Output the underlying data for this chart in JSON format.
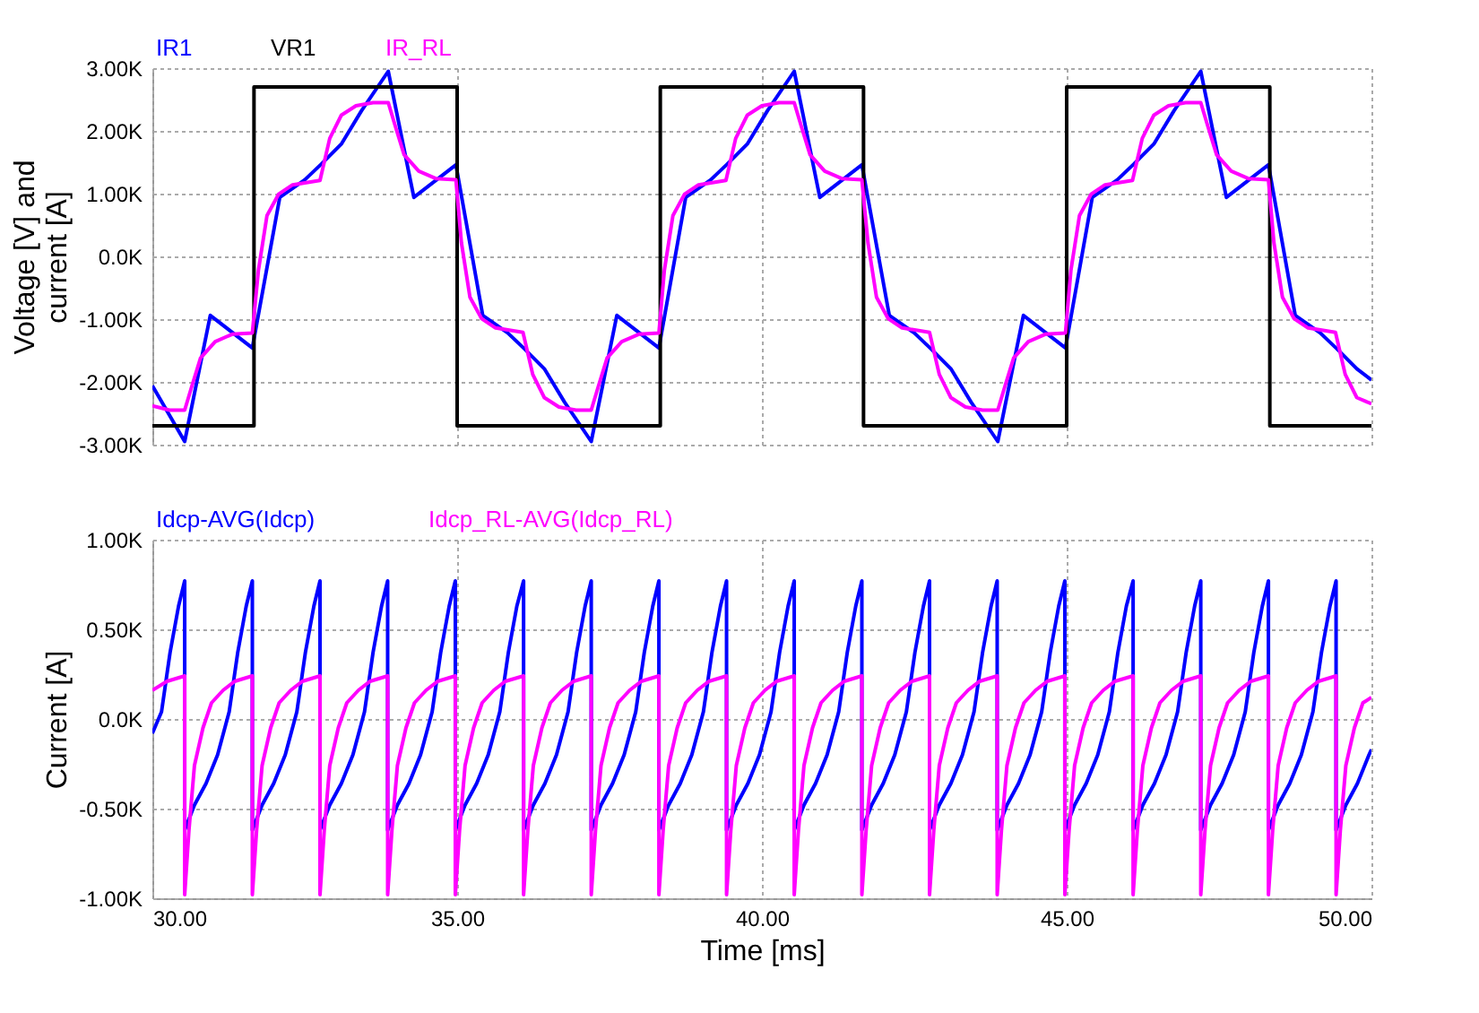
{
  "chart_data": [
    {
      "type": "line",
      "ylabel": "Voltage [V] and\ncurrent [A]",
      "legend": "top left",
      "grid": true,
      "tick_labels": "y",
      "xlim": [
        30,
        50
      ],
      "xticks": [
        30,
        35,
        40,
        45,
        50
      ],
      "ylim": [
        -3000,
        3000
      ],
      "yticks": [
        {
          "value": -3000,
          "label": "-3.00K"
        },
        {
          "value": -2000,
          "label": "-2.00K"
        },
        {
          "value": -1000,
          "label": "-1.00K"
        },
        {
          "value": 0,
          "label": "0.0K"
        },
        {
          "value": 1000,
          "label": "1.00K"
        },
        {
          "value": 2000,
          "label": "2.00K"
        },
        {
          "value": 3000,
          "label": "3.00K"
        }
      ],
      "series": [
        {
          "name": "IR1",
          "color": "#0000ff",
          "type": "line",
          "x": [
            30.0,
            30.53,
            30.95,
            31.64,
            32.09,
            32.5,
            32.77,
            33.1,
            33.43,
            33.87,
            34.29,
            34.98,
            35.42,
            35.83,
            36.1,
            36.43,
            36.76,
            37.2,
            37.62,
            38.31,
            38.75,
            39.16,
            39.43,
            39.76,
            40.09,
            40.53,
            40.95,
            41.64,
            42.09,
            42.5,
            42.77,
            43.1,
            43.43,
            43.87,
            44.29,
            44.98,
            45.42,
            45.83,
            46.1,
            46.43,
            46.76,
            47.2,
            47.62,
            48.31,
            48.75,
            49.16,
            49.43,
            49.76,
            50.0
          ],
          "values": [
            -2060,
            -2950,
            -940,
            -1460,
            940,
            1220,
            1470,
            1790,
            2320,
            2950,
            940,
            1460,
            -940,
            -1220,
            -1470,
            -1790,
            -2320,
            -2950,
            -940,
            -1460,
            940,
            1220,
            1470,
            1790,
            2320,
            2950,
            940,
            1460,
            -940,
            -1220,
            -1470,
            -1790,
            -2320,
            -2950,
            -940,
            -1460,
            940,
            1220,
            1470,
            1790,
            2320,
            2950,
            940,
            1460,
            -940,
            -1220,
            -1470,
            -1790,
            -1970
          ]
        },
        {
          "name": "VR1",
          "color": "#000000",
          "type": "step",
          "x": [
            30,
            31.667,
            35,
            38.333,
            41.667,
            45,
            48.333,
            50
          ],
          "values": [
            -2700,
            2700,
            -2700,
            2700,
            -2700,
            2700,
            -2700,
            -2700
          ]
        },
        {
          "name": "IR_RL",
          "color": "#ff00ff",
          "type": "line",
          "x": [
            30.0,
            30.28,
            30.53,
            30.65,
            30.79,
            31.03,
            31.31,
            31.64,
            31.74,
            31.88,
            32.07,
            32.3,
            32.75,
            32.91,
            33.1,
            33.34,
            33.62,
            33.87,
            33.99,
            34.13,
            34.37,
            34.65,
            34.98,
            35.07,
            35.21,
            35.4,
            35.63,
            36.08,
            36.24,
            36.43,
            36.67,
            36.95,
            37.2,
            37.32,
            37.46,
            37.7,
            37.98,
            38.31,
            38.4,
            38.54,
            38.73,
            38.96,
            39.41,
            39.57,
            39.76,
            40.0,
            40.28,
            40.53,
            40.65,
            40.79,
            41.03,
            41.31,
            41.64,
            41.74,
            41.88,
            42.07,
            42.3,
            42.75,
            42.91,
            43.1,
            43.34,
            43.62,
            43.87,
            43.99,
            44.13,
            44.37,
            44.65,
            44.98,
            45.07,
            45.21,
            45.4,
            45.63,
            46.08,
            46.24,
            46.43,
            46.67,
            46.95,
            47.2,
            47.32,
            47.46,
            47.7,
            47.98,
            48.31,
            48.4,
            48.54,
            48.73,
            48.96,
            49.41,
            49.57,
            49.76,
            50.0
          ],
          "values": [
            -2380,
            -2450,
            -2450,
            -2060,
            -1620,
            -1360,
            -1240,
            -1220,
            -220,
            650,
            990,
            1140,
            1210,
            1880,
            2250,
            2400,
            2450,
            2450,
            2060,
            1620,
            1360,
            1240,
            1220,
            220,
            -650,
            -990,
            -1140,
            -1210,
            -1880,
            -2250,
            -2400,
            -2450,
            -2450,
            -2060,
            -1620,
            -1360,
            -1240,
            -1220,
            -220,
            650,
            990,
            1140,
            1210,
            1880,
            2250,
            2400,
            2450,
            2450,
            2060,
            1620,
            1360,
            1240,
            1220,
            220,
            -650,
            -990,
            -1140,
            -1210,
            -1880,
            -2250,
            -2400,
            -2450,
            -2450,
            -2060,
            -1620,
            -1360,
            -1240,
            -1220,
            -220,
            650,
            990,
            1140,
            1210,
            1880,
            2250,
            2400,
            2450,
            2450,
            2060,
            1620,
            1360,
            1240,
            1220,
            220,
            -650,
            -990,
            -1140,
            -1210,
            -1880,
            -2250,
            -2350
          ]
        }
      ]
    },
    {
      "type": "line",
      "ylabel": "Current [A]",
      "xlabel": "Time [ms]",
      "legend": "top left",
      "grid": true,
      "xlim": [
        30,
        50
      ],
      "xticks": [
        {
          "value": 30,
          "label": "30.00"
        },
        {
          "value": 35,
          "label": "35.00"
        },
        {
          "value": 40,
          "label": "40.00"
        },
        {
          "value": 45,
          "label": "45.00"
        },
        {
          "value": 50,
          "label": "50.00"
        }
      ],
      "ylim": [
        -1000,
        1000
      ],
      "yticks": [
        {
          "value": -1000,
          "label": "-1.00K"
        },
        {
          "value": -500,
          "label": "-0.50K"
        },
        {
          "value": 0,
          "label": "0.0K"
        },
        {
          "value": 500,
          "label": "0.50K"
        },
        {
          "value": 1000,
          "label": "1.00K"
        }
      ],
      "series": [
        {
          "name": "Idcp-AVG(Idcp)",
          "color": "#0000ff",
          "type": "line",
          "x": [
            30.0,
            30.15,
            30.29,
            30.43,
            30.53,
            30.53,
            30.69,
            30.88,
            31.07,
            31.26,
            31.4,
            31.54,
            31.64,
            31.64,
            31.8,
            31.99,
            32.18,
            32.37,
            32.51,
            32.65,
            32.75,
            32.75,
            32.91,
            33.1,
            33.29,
            33.48,
            33.62,
            33.76,
            33.86,
            33.86,
            34.02,
            34.21,
            34.4,
            34.59,
            34.73,
            34.87,
            34.97,
            34.97,
            35.13,
            35.32,
            35.51,
            35.7,
            35.84,
            35.98,
            36.09,
            36.09,
            36.25,
            36.44,
            36.63,
            36.82,
            36.96,
            37.1,
            37.2,
            37.2,
            37.36,
            37.55,
            37.74,
            37.93,
            38.07,
            38.21,
            38.31,
            38.31,
            38.47,
            38.66,
            38.85,
            39.04,
            39.18,
            39.32,
            39.42,
            39.42,
            39.58,
            39.77,
            39.96,
            40.15,
            40.29,
            40.43,
            40.53,
            40.53,
            40.69,
            40.88,
            41.07,
            41.26,
            41.4,
            41.54,
            41.64,
            41.64,
            41.8,
            41.99,
            42.18,
            42.37,
            42.51,
            42.65,
            42.75,
            42.75,
            42.91,
            43.1,
            43.29,
            43.48,
            43.62,
            43.76,
            43.86,
            43.86,
            44.02,
            44.21,
            44.4,
            44.59,
            44.73,
            44.87,
            44.97,
            44.97,
            45.13,
            45.32,
            45.51,
            45.7,
            45.84,
            45.98,
            46.09,
            46.09,
            46.25,
            46.44,
            46.63,
            46.82,
            46.96,
            47.1,
            47.2,
            47.2,
            47.36,
            47.55,
            47.74,
            47.93,
            48.07,
            48.21,
            48.31,
            48.31,
            48.47,
            48.66,
            48.85,
            49.04,
            49.18,
            49.32,
            49.42,
            49.42,
            49.58,
            49.77,
            49.96,
            50.0
          ],
          "values": [
            -80,
            40,
            370,
            630,
            770,
            -620,
            -480,
            -360,
            -200,
            40,
            370,
            630,
            770,
            -620,
            -480,
            -360,
            -200,
            40,
            370,
            630,
            770,
            -620,
            -480,
            -360,
            -200,
            40,
            370,
            630,
            770,
            -620,
            -480,
            -360,
            -200,
            40,
            370,
            630,
            770,
            -620,
            -480,
            -360,
            -200,
            40,
            370,
            630,
            770,
            -620,
            -480,
            -360,
            -200,
            40,
            370,
            630,
            770,
            -620,
            -480,
            -360,
            -200,
            40,
            370,
            630,
            770,
            -620,
            -480,
            -360,
            -200,
            40,
            370,
            630,
            770,
            -620,
            -480,
            -360,
            -200,
            40,
            370,
            630,
            770,
            -620,
            -480,
            -360,
            -200,
            40,
            370,
            630,
            770,
            -620,
            -480,
            -360,
            -200,
            40,
            370,
            630,
            770,
            -620,
            -480,
            -360,
            -200,
            40,
            370,
            630,
            770,
            -620,
            -480,
            -360,
            -200,
            40,
            370,
            630,
            770,
            -620,
            -480,
            -360,
            -200,
            40,
            370,
            630,
            770,
            -620,
            -480,
            -360,
            -200,
            40,
            370,
            630,
            770,
            -620,
            -480,
            -360,
            -200,
            40,
            370,
            630,
            770,
            -620,
            -480,
            -360,
            -200,
            40,
            370,
            630,
            770,
            -620,
            -480,
            -360,
            -200,
            -170
          ]
        },
        {
          "name": "Idcp_RL-AVG(Idcp_RL)",
          "color": "#ff00ff",
          "type": "line",
          "x": [
            30.0,
            30.24,
            30.53,
            30.53,
            30.6,
            30.69,
            30.83,
            30.97,
            31.16,
            31.35,
            31.64,
            31.64,
            31.71,
            31.8,
            31.94,
            32.08,
            32.27,
            32.46,
            32.75,
            32.75,
            32.82,
            32.91,
            33.05,
            33.19,
            33.38,
            33.57,
            33.86,
            33.86,
            33.93,
            34.02,
            34.16,
            34.3,
            34.49,
            34.68,
            34.97,
            34.97,
            35.04,
            35.13,
            35.27,
            35.41,
            35.6,
            35.79,
            36.09,
            36.09,
            36.16,
            36.25,
            36.39,
            36.53,
            36.72,
            36.91,
            37.2,
            37.2,
            37.27,
            37.36,
            37.5,
            37.64,
            37.83,
            38.02,
            38.31,
            38.31,
            38.38,
            38.47,
            38.61,
            38.75,
            38.94,
            39.13,
            39.42,
            39.42,
            39.49,
            39.58,
            39.72,
            39.86,
            40.05,
            40.24,
            40.53,
            40.53,
            40.6,
            40.69,
            40.83,
            40.97,
            41.16,
            41.35,
            41.64,
            41.64,
            41.71,
            41.8,
            41.94,
            42.08,
            42.27,
            42.46,
            42.75,
            42.75,
            42.82,
            42.91,
            43.05,
            43.19,
            43.38,
            43.57,
            43.86,
            43.86,
            43.93,
            44.02,
            44.16,
            44.3,
            44.49,
            44.68,
            44.97,
            44.97,
            45.04,
            45.13,
            45.27,
            45.41,
            45.6,
            45.79,
            46.09,
            46.09,
            46.16,
            46.25,
            46.39,
            46.53,
            46.72,
            46.91,
            47.2,
            47.2,
            47.27,
            47.36,
            47.5,
            47.64,
            47.83,
            48.02,
            48.31,
            48.31,
            48.38,
            48.47,
            48.61,
            48.75,
            48.94,
            49.13,
            49.42,
            49.42,
            49.49,
            49.58,
            49.72,
            49.86,
            50.0
          ],
          "values": [
            160,
            210,
            240,
            -980,
            -620,
            -260,
            -50,
            90,
            160,
            210,
            240,
            -980,
            -620,
            -260,
            -50,
            90,
            160,
            210,
            240,
            -980,
            -620,
            -260,
            -50,
            90,
            160,
            210,
            240,
            -980,
            -620,
            -260,
            -50,
            90,
            160,
            210,
            240,
            -980,
            -620,
            -260,
            -50,
            90,
            160,
            210,
            240,
            -980,
            -620,
            -260,
            -50,
            90,
            160,
            210,
            240,
            -980,
            -620,
            -260,
            -50,
            90,
            160,
            210,
            240,
            -980,
            -620,
            -260,
            -50,
            90,
            160,
            210,
            240,
            -980,
            -620,
            -260,
            -50,
            90,
            160,
            210,
            240,
            -980,
            -620,
            -260,
            -50,
            90,
            160,
            210,
            240,
            -980,
            -620,
            -260,
            -50,
            90,
            160,
            210,
            240,
            -980,
            -620,
            -260,
            -50,
            90,
            160,
            210,
            240,
            -980,
            -620,
            -260,
            -50,
            90,
            160,
            210,
            240,
            -980,
            -620,
            -260,
            -50,
            90,
            160,
            210,
            240,
            -980,
            -620,
            -260,
            -50,
            90,
            160,
            210,
            240,
            -980,
            -620,
            -260,
            -50,
            90,
            160,
            210,
            240,
            -980,
            -620,
            -260,
            -50,
            90,
            160,
            210,
            240,
            -980,
            -620,
            -260,
            -50,
            90,
            120
          ]
        }
      ]
    }
  ]
}
